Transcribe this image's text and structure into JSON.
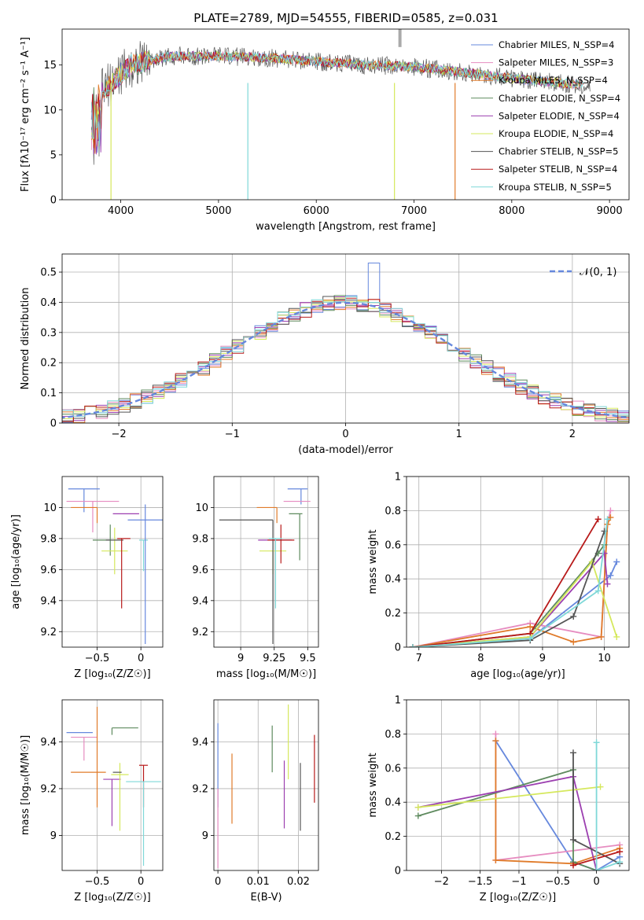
{
  "figure": {
    "title": "PLATE=2789, MJD=54555, FIBERID=0585, z=0.031"
  },
  "colors": [
    "#6688dd",
    "#e68cc0",
    "#e07b2a",
    "#5e8a5e",
    "#9c3fb0",
    "#d5e85c",
    "#555555",
    "#b81a1a",
    "#7fd8d8"
  ],
  "chart_data": [
    {
      "id": "spectrum",
      "type": "line",
      "title": "PLATE=2789, MJD=54555, FIBERID=0585, z=0.031",
      "xlabel": "wavelength [Angstrom, rest frame]",
      "ylabel": "Flux [fλ10⁻¹⁷ erg cm⁻² s⁻¹ A⁻¹]",
      "xlim": [
        3400,
        9200
      ],
      "ylim": [
        0,
        19
      ],
      "xticks": [
        4000,
        5000,
        6000,
        7000,
        8000,
        9000
      ],
      "yticks": [
        0,
        5,
        10,
        15
      ],
      "grid": false,
      "legend_position": "top-right",
      "series": [
        {
          "name": "Chabrier MILES, N_SSP=4"
        },
        {
          "name": "Salpeter MILES, N_SSP=3"
        },
        {
          "name": "Kroupa MILES, N_SSP=4"
        },
        {
          "name": "Chabrier ELODIE, N_SSP=4"
        },
        {
          "name": "Salpeter ELODIE, N_SSP=4"
        },
        {
          "name": "Kroupa ELODIE, N_SSP=4"
        },
        {
          "name": "Chabrier STELIB, N_SSP=5"
        },
        {
          "name": "Salpeter STELIB, N_SSP=4"
        },
        {
          "name": "Kroupa STELIB, N_SSP=5"
        }
      ],
      "continuum_x": [
        3700,
        3800,
        3900,
        4000,
        4100,
        4300,
        4500,
        5000,
        5500,
        6000,
        6500,
        7000,
        7500,
        8000,
        8500,
        8800
      ],
      "continuum_y": [
        11.5,
        12.0,
        13.0,
        14.0,
        15.0,
        15.5,
        16.0,
        16.0,
        15.8,
        15.4,
        15.0,
        14.8,
        14.2,
        13.5,
        13.0,
        12.7
      ]
    },
    {
      "id": "residuals",
      "type": "histogram",
      "xlabel": "(data-model)/error",
      "ylabel": "Normed distribution",
      "xlim": [
        -2.5,
        2.5
      ],
      "ylim": [
        0,
        0.56
      ],
      "xticks": [
        -2,
        -1,
        0,
        1,
        2
      ],
      "yticks": [
        0.0,
        0.1,
        0.2,
        0.3,
        0.4,
        0.5
      ],
      "grid": true,
      "legend": "𝒩(0, 1)",
      "legend_position": "top-right",
      "bin_width": 0.1,
      "highlight": {
        "bin_center": 0.25,
        "value": 0.53
      }
    },
    {
      "id": "age-vs-Z",
      "type": "scatter",
      "xlabel": "Z [log₁₀(Z/Z☉)]",
      "ylabel": "age  [log₁₀(age/yr)]",
      "xlim": [
        -0.9,
        0.25
      ],
      "ylim": [
        9.1,
        10.2
      ],
      "xticks": [
        -0.5,
        0.0
      ],
      "yticks": [
        9.2,
        9.4,
        9.6,
        9.8,
        10.0
      ],
      "points": [
        {
          "x": -0.65,
          "xerr": [
            0.18,
            0.18
          ],
          "y": 10.12,
          "yerr": [
            0.15,
            0.0
          ]
        },
        {
          "x": -0.55,
          "xerr": [
            0.3,
            0.3
          ],
          "y": 10.04,
          "yerr": [
            0.2,
            0.0
          ]
        },
        {
          "x": -0.5,
          "xerr": [
            0.3,
            0.0
          ],
          "y": 10.0,
          "yerr": [
            0.1,
            0.0
          ]
        },
        {
          "x": -0.35,
          "xerr": [
            0.2,
            0.0
          ],
          "y": 9.79,
          "yerr": [
            0.1,
            0.1
          ]
        },
        {
          "x": -0.32,
          "xerr": [
            0.0,
            0.3
          ],
          "y": 9.96,
          "yerr": [
            0.0,
            0.0
          ]
        },
        {
          "x": -0.3,
          "xerr": [
            0.15,
            0.15
          ],
          "y": 9.72,
          "yerr": [
            0.15,
            0.15
          ]
        },
        {
          "x": -0.3,
          "xerr": [
            0.1,
            0.1
          ],
          "y": 9.79,
          "yerr": [
            0.0,
            0.0
          ]
        },
        {
          "x": -0.22,
          "xerr": [
            0.05,
            0.1
          ],
          "y": 9.8,
          "yerr": [
            0.45,
            0.0
          ]
        },
        {
          "x": 0.03,
          "xerr": [
            0.05,
            0.05
          ],
          "y": 9.79,
          "yerr": [
            0.2,
            0.0
          ]
        },
        {
          "x": 0.05,
          "xerr": [
            0.2,
            0.2
          ],
          "y": 9.92,
          "yerr": [
            0.8,
            0.1
          ]
        }
      ]
    },
    {
      "id": "age-vs-mass",
      "type": "scatter",
      "xlabel": "mass [log₁₀(M/M☉)]",
      "ylabel": "",
      "xlim": [
        8.8,
        9.58
      ],
      "ylim": [
        9.1,
        10.2
      ],
      "xticks": [
        9.0,
        9.25,
        9.5
      ],
      "yticks": [
        9.2,
        9.4,
        9.6,
        9.8,
        10.0
      ],
      "points": [
        {
          "x": 9.45,
          "xerr": [
            0.1,
            0.05
          ],
          "y": 10.12,
          "yerr": [
            0.1,
            0.0
          ]
        },
        {
          "x": 9.42,
          "xerr": [
            0.1,
            0.1
          ],
          "y": 10.04,
          "yerr": [
            0.0,
            0.0
          ]
        },
        {
          "x": 9.27,
          "xerr": [
            0.15,
            0.0
          ],
          "y": 10.0,
          "yerr": [
            0.1,
            0.0
          ]
        },
        {
          "x": 9.44,
          "xerr": [
            0.08,
            0.02
          ],
          "y": 9.96,
          "yerr": [
            0.3,
            0.0
          ]
        },
        {
          "x": 9.28,
          "xerr": [
            0.15,
            0.1
          ],
          "y": 9.79,
          "yerr": [
            0.0,
            0.0
          ]
        },
        {
          "x": 9.24,
          "xerr": [
            0.1,
            0.1
          ],
          "y": 9.72,
          "yerr": [
            0.15,
            0.0
          ]
        },
        {
          "x": 9.24,
          "xerr": [
            0.4,
            0.0
          ],
          "y": 9.92,
          "yerr": [
            0.8,
            0.0
          ]
        },
        {
          "x": 9.3,
          "xerr": [
            0.1,
            0.1
          ],
          "y": 9.79,
          "yerr": [
            0.15,
            0.1
          ]
        },
        {
          "x": 9.26,
          "xerr": [
            0.05,
            0.05
          ],
          "y": 9.8,
          "yerr": [
            0.45,
            0.0
          ]
        }
      ]
    },
    {
      "id": "mass-weight-vs-age",
      "type": "line",
      "xlabel": "age  [log₁₀(age/yr)]",
      "ylabel": "mass weight",
      "xlim": [
        6.8,
        10.4
      ],
      "ylim": [
        0,
        1.0
      ],
      "xticks": [
        7,
        8,
        9,
        10
      ],
      "yticks": [
        0.0,
        0.2,
        0.4,
        0.6,
        0.8,
        1.0
      ],
      "series": [
        {
          "x": [
            6.9,
            8.8,
            10.1,
            10.2
          ],
          "y": [
            0.0,
            0.05,
            0.42,
            0.5
          ]
        },
        {
          "x": [
            6.9,
            8.8,
            9.95,
            10.05,
            10.1
          ],
          "y": [
            0.0,
            0.14,
            0.06,
            0.72,
            0.8
          ]
        },
        {
          "x": [
            6.9,
            8.8,
            9.5,
            9.95,
            10.05,
            10.1
          ],
          "y": [
            0.0,
            0.12,
            0.03,
            0.06,
            0.72,
            0.76
          ]
        },
        {
          "x": [
            6.9,
            8.8,
            9.9,
            10.0
          ],
          "y": [
            0.0,
            0.08,
            0.55,
            0.6
          ]
        },
        {
          "x": [
            6.9,
            8.8,
            10.0,
            10.05
          ],
          "y": [
            0.0,
            0.06,
            0.55,
            0.37
          ]
        },
        {
          "x": [
            6.9,
            8.8,
            9.8,
            10.2
          ],
          "y": [
            0.0,
            0.06,
            0.5,
            0.06
          ]
        },
        {
          "x": [
            6.9,
            8.8,
            9.5,
            10.0
          ],
          "y": [
            0.0,
            0.04,
            0.18,
            0.68
          ]
        },
        {
          "x": [
            6.9,
            8.8,
            9.9
          ],
          "y": [
            0.0,
            0.08,
            0.75
          ]
        },
        {
          "x": [
            6.9,
            8.8,
            9.9,
            10.05
          ],
          "y": [
            0.0,
            0.05,
            0.33,
            0.75
          ]
        }
      ]
    },
    {
      "id": "mass-vs-Z",
      "type": "scatter",
      "xlabel": "Z [log₁₀(Z/Z☉)]",
      "ylabel": "mass [log₁₀(M/M☉)]",
      "xlim": [
        -0.9,
        0.25
      ],
      "ylim": [
        8.85,
        9.58
      ],
      "xticks": [
        -0.5,
        0.0
      ],
      "yticks": [
        9.0,
        9.2,
        9.4
      ],
      "points": [
        {
          "x": -0.7,
          "xerr": [
            0.15,
            0.15
          ],
          "y": 9.44,
          "yerr": [
            0.0,
            0.0
          ]
        },
        {
          "x": -0.65,
          "xerr": [
            0.15,
            0.15
          ],
          "y": 9.42,
          "yerr": [
            0.1,
            0.0
          ]
        },
        {
          "x": -0.5,
          "xerr": [
            0.3,
            0.1
          ],
          "y": 9.27,
          "yerr": [
            0.15,
            0.28
          ]
        },
        {
          "x": -0.33,
          "xerr": [
            0.0,
            0.3
          ],
          "y": 9.46,
          "yerr": [
            0.03,
            0.0
          ]
        },
        {
          "x": -0.33,
          "xerr": [
            0.1,
            0.1
          ],
          "y": 9.24,
          "yerr": [
            0.2,
            0.0
          ]
        },
        {
          "x": -0.24,
          "xerr": [
            0.1,
            0.1
          ],
          "y": 9.26,
          "yerr": [
            0.24,
            0.05
          ]
        },
        {
          "x": -0.22,
          "xerr": [
            0.1,
            0.0
          ],
          "y": 9.27,
          "yerr": [
            0.0,
            0.0
          ]
        },
        {
          "x": 0.03,
          "xerr": [
            0.05,
            0.05
          ],
          "y": 9.3,
          "yerr": [
            0.18,
            0.0
          ]
        },
        {
          "x": 0.03,
          "xerr": [
            0.2,
            0.2
          ],
          "y": 9.23,
          "yerr": [
            0.36,
            0.0
          ]
        }
      ]
    },
    {
      "id": "mass-vs-ebv",
      "type": "scatter",
      "xlabel": "E(B-V)",
      "ylabel": "",
      "xlim": [
        -0.001,
        0.025
      ],
      "ylim": [
        8.85,
        9.58
      ],
      "xticks": [
        0.0,
        0.01,
        0.02
      ],
      "yticks": [
        9.0,
        9.2,
        9.4
      ],
      "points": [
        {
          "x": 0.0,
          "yerr_range": [
            9.12,
            9.48
          ]
        },
        {
          "x": 0.0,
          "yerr_range": [
            8.86,
            9.2
          ]
        },
        {
          "x": 0.0035,
          "yerr_range": [
            9.05,
            9.35
          ]
        },
        {
          "x": 0.0135,
          "yerr_range": [
            9.27,
            9.47
          ]
        },
        {
          "x": 0.0165,
          "yerr_range": [
            9.03,
            9.32
          ]
        },
        {
          "x": 0.0175,
          "yerr_range": [
            9.24,
            9.56
          ]
        },
        {
          "x": 0.0205,
          "yerr_range": [
            9.02,
            9.31
          ]
        },
        {
          "x": 0.024,
          "yerr_range": [
            9.14,
            9.43
          ]
        }
      ]
    },
    {
      "id": "mass-weight-vs-Z",
      "type": "line",
      "xlabel": "Z [log₁₀(Z/Z☉)]",
      "ylabel": "mass weight",
      "xlim": [
        -2.45,
        0.42
      ],
      "ylim": [
        0,
        1.0
      ],
      "xticks": [
        -2.0,
        -1.5,
        -1.0,
        -0.5,
        0.0
      ],
      "yticks": [
        0.0,
        0.2,
        0.4,
        0.6,
        0.8,
        1.0
      ],
      "series": [
        {
          "x": [
            -1.3,
            -0.3,
            0.0,
            0.3
          ],
          "y": [
            0.76,
            0.05,
            0.0,
            0.08
          ]
        },
        {
          "x": [
            -1.3,
            -1.3,
            0.3
          ],
          "y": [
            0.8,
            0.06,
            0.15
          ]
        },
        {
          "x": [
            -1.3,
            -1.3,
            -0.3,
            0.3
          ],
          "y": [
            0.76,
            0.06,
            0.04,
            0.13
          ]
        },
        {
          "x": [
            -2.3,
            -0.3,
            -0.3,
            0.0
          ],
          "y": [
            0.32,
            0.59,
            0.05,
            0.0
          ]
        },
        {
          "x": [
            -2.3,
            -0.3,
            0.0
          ],
          "y": [
            0.37,
            0.55,
            0.0
          ]
        },
        {
          "x": [
            -2.3,
            0.05
          ],
          "y": [
            0.37,
            0.49
          ]
        },
        {
          "x": [
            -0.3,
            -0.3,
            0.3
          ],
          "y": [
            0.69,
            0.18,
            0.04
          ]
        },
        {
          "x": [
            -0.3,
            0.3
          ],
          "y": [
            0.03,
            0.11
          ]
        },
        {
          "x": [
            0.0,
            0.0,
            0.3
          ],
          "y": [
            0.75,
            0.0,
            0.05
          ]
        }
      ]
    }
  ]
}
